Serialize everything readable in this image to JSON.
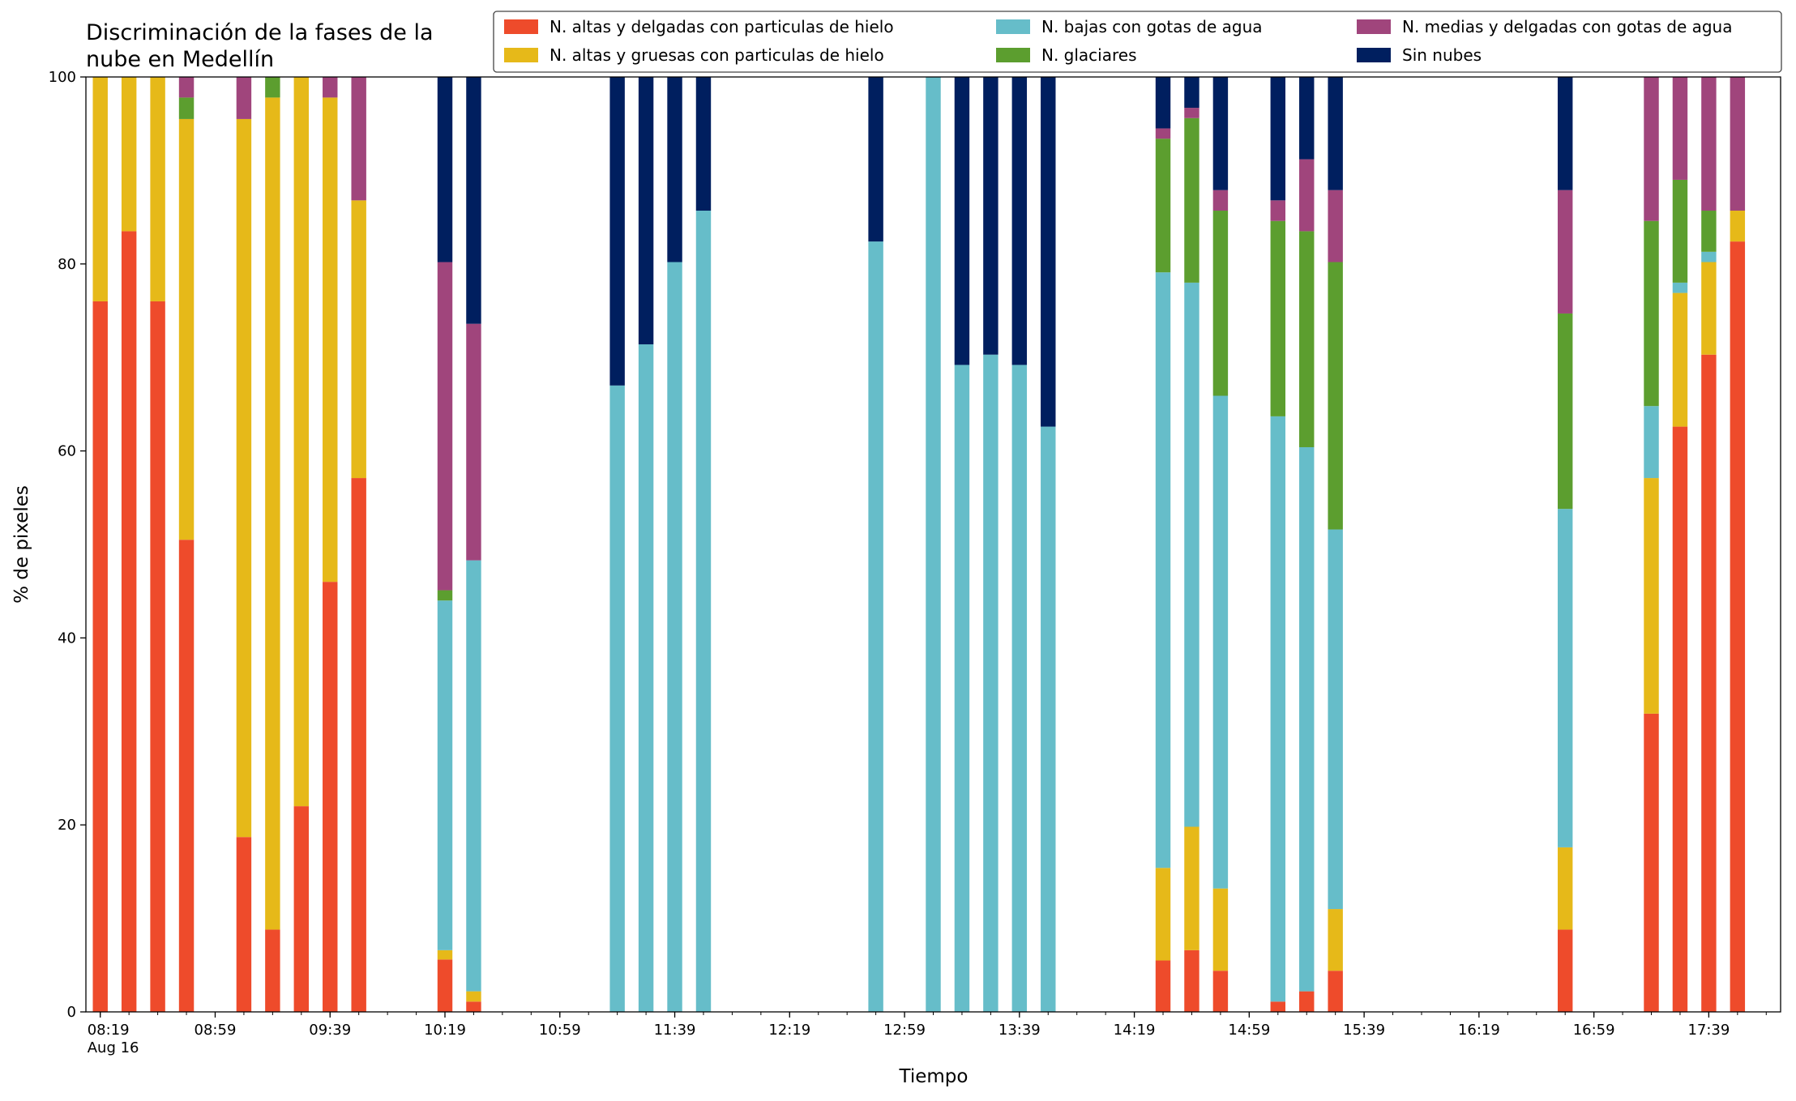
{
  "chart_data": {
    "type": "stacked_bar",
    "title": [
      "Discriminación de la fases de la",
      "nube en Medellín"
    ],
    "xlabel": "Tiempo",
    "ylabel": "% de pixeles",
    "x": [
      "08:19",
      "08:29",
      "08:39",
      "08:49",
      "09:09",
      "09:19",
      "09:29",
      "09:39",
      "09:49",
      "10:19",
      "10:29",
      "11:19",
      "11:29",
      "11:39",
      "11:49",
      "12:49",
      "13:09",
      "13:19",
      "13:29",
      "13:39",
      "13:49",
      "14:29",
      "14:39",
      "14:49",
      "15:09",
      "15:19",
      "15:29",
      "16:49",
      "17:19",
      "17:29",
      "17:39",
      "17:49"
    ],
    "series": [
      {
        "name": "N. altas y delgadas con particulas de hielo",
        "color": "#ee4b2b",
        "values": [
          76,
          83.5,
          76,
          50.5,
          18.7,
          8.8,
          22,
          46,
          57.1,
          5.6,
          1.1,
          0,
          0,
          0,
          0,
          0,
          0,
          0,
          0,
          0,
          0,
          5.5,
          6.6,
          4.4,
          1.1,
          2.2,
          4.4,
          8.8,
          31.9,
          62.6,
          70.3,
          82.4
        ]
      },
      {
        "name": "N. altas y gruesas con particulas de hielo",
        "color": "#e6b919",
        "values": [
          24,
          16.5,
          24,
          45,
          76.8,
          89,
          78,
          51.8,
          29.7,
          1,
          1.1,
          0,
          0,
          0,
          0,
          0,
          0,
          0,
          0,
          0,
          0,
          9.9,
          13.2,
          8.8,
          0,
          0,
          6.6,
          8.8,
          25.2,
          14.3,
          9.9,
          3.3
        ]
      },
      {
        "name": "N. bajas con gotas de agua",
        "color": "#66bdc9",
        "values": [
          0,
          0,
          0,
          0,
          0,
          0,
          0,
          0,
          0,
          37.4,
          46.1,
          67,
          71.4,
          80.2,
          85.7,
          82.4,
          100,
          69.2,
          70.3,
          69.2,
          62.6,
          63.7,
          58.2,
          52.7,
          62.6,
          58.2,
          40.6,
          36.2,
          7.7,
          1.1,
          1.1,
          0
        ]
      },
      {
        "name": "N. glaciares",
        "color": "#5c9e2f",
        "values": [
          0,
          0,
          0,
          2.3,
          0,
          2.2,
          0,
          0,
          0,
          1.1,
          0,
          0,
          0,
          0,
          0,
          0,
          0,
          0,
          0,
          0,
          0,
          14.3,
          17.6,
          19.8,
          20.9,
          23.1,
          28.6,
          20.9,
          19.8,
          11,
          4.4,
          0
        ]
      },
      {
        "name": "N. medias y delgadas con gotas de agua",
        "color": "#a0457c",
        "values": [
          0,
          0,
          0,
          2.2,
          4.5,
          0,
          0,
          2.2,
          13.2,
          35.1,
          25.3,
          0,
          0,
          0,
          0,
          0,
          0,
          0,
          0,
          0,
          0,
          1.1,
          1.1,
          2.2,
          2.2,
          7.7,
          7.7,
          13.2,
          15.4,
          11,
          14.3,
          14.3
        ]
      },
      {
        "name": "Sin nubes",
        "color": "#001f5f",
        "values": [
          0,
          0,
          0,
          0,
          0,
          0,
          0,
          0,
          0,
          19.8,
          26.4,
          33,
          28.6,
          19.8,
          14.3,
          17.6,
          0,
          30.8,
          29.7,
          30.8,
          37.4,
          5.5,
          3.3,
          12.1,
          13.2,
          8.8,
          12.1,
          12.1,
          0,
          0,
          0,
          0
        ]
      }
    ],
    "xlim": [
      "08:14",
      "18:04"
    ],
    "xticks": [
      "08:19",
      "08:59",
      "09:39",
      "10:19",
      "10:59",
      "11:39",
      "12:19",
      "12:59",
      "13:39",
      "14:19",
      "14:59",
      "15:39",
      "16:19",
      "16:59",
      "17:39"
    ],
    "x_date_label": "Aug 16",
    "x_minor_tick_minutes": 10,
    "ylim": [
      0,
      100
    ],
    "yticks": [
      0,
      20,
      40,
      60,
      80,
      100
    ],
    "legend": "top-right",
    "legend_columns": 3
  }
}
